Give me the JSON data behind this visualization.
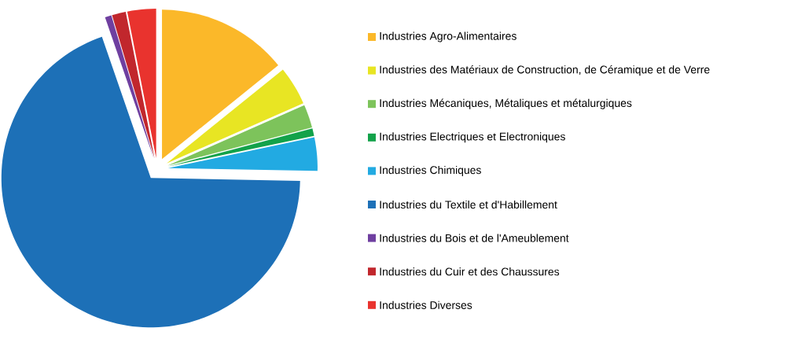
{
  "chart_data": {
    "type": "pie",
    "categories": [
      "Industries Agro-Alimentaires",
      "Industries des Matériaux de Construction, de Céramique et de Verre",
      "Industries Mécaniques, Métaliques et métalurgiques",
      "Industries Electriques et Electroniques",
      "Industries Chimiques",
      "Industries du Textile et d'Habillement",
      "Industries du Bois et de l'Ameublement",
      "Industries du Cuir et des Chaussures",
      "Industries Diverses"
    ],
    "values": [
      14.2,
      4.2,
      2.5,
      0.8,
      3.6,
      69.4,
      0.7,
      1.5,
      3.1
    ],
    "colors": [
      "#fbb829",
      "#e8e523",
      "#7dc35b",
      "#13a24a",
      "#22aae2",
      "#1d70b7",
      "#6f3fa0",
      "#c1272d",
      "#e9332e"
    ],
    "legend": "right"
  }
}
